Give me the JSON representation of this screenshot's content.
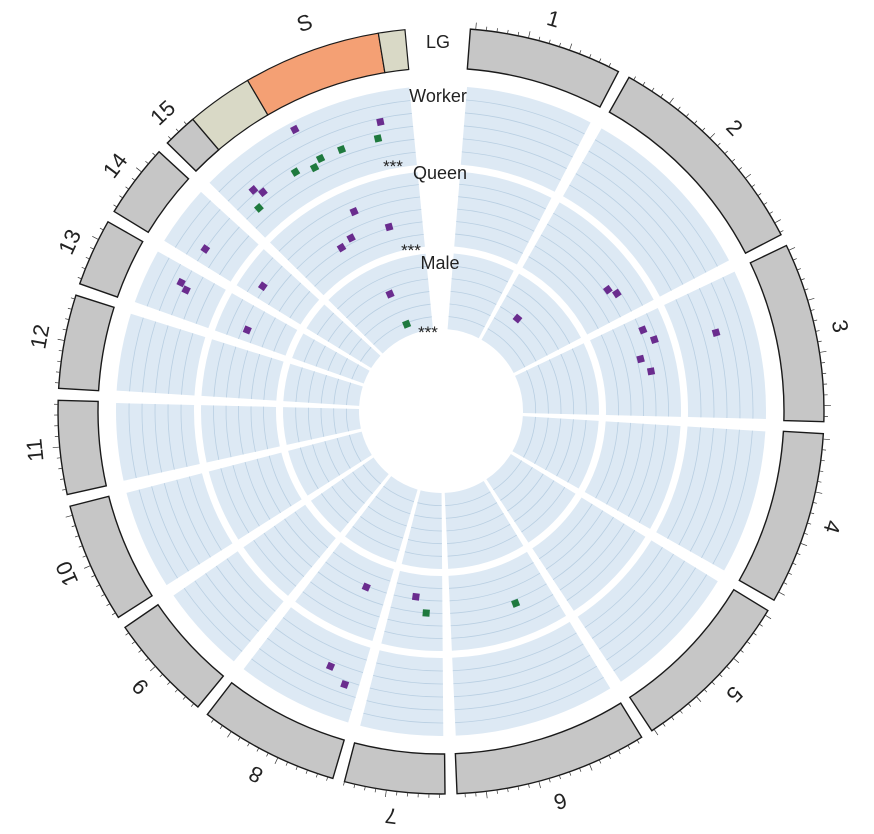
{
  "colors": {
    "chromosome_fill": "#c6c6c6",
    "chromosome_stroke": "#1a1a1a",
    "s_segment_main": "#f4a074",
    "s_segment_side": "#d9d9c6",
    "track_fill": "#dde9f4",
    "track_line": "#b9cfe2",
    "marker_purple": "#6a2c8e",
    "marker_green": "#1f7a3e"
  },
  "labels": {
    "lg": "LG",
    "s": "S",
    "worker": "Worker",
    "queen": "Queen",
    "male": "Male",
    "sig_worker": "***",
    "sig_queen": "***",
    "sig_male": "***"
  },
  "linkage_groups": [
    "1",
    "2",
    "3",
    "4",
    "5",
    "6",
    "7",
    "8",
    "9",
    "10",
    "11",
    "12",
    "13",
    "14",
    "15"
  ],
  "tracks": [
    "Worker",
    "Queen",
    "Male"
  ],
  "markers": [
    {
      "track": "Worker",
      "group": "S",
      "value": 0.9,
      "offset": 0.45,
      "color": "purple"
    },
    {
      "track": "Worker",
      "group": "S",
      "value": 0.55,
      "offset": 0.12,
      "color": "purple"
    },
    {
      "track": "Worker",
      "group": "S",
      "value": 0.45,
      "offset": 0.15,
      "color": "purple"
    },
    {
      "track": "Worker",
      "group": "S",
      "value": 0.62,
      "offset": 0.85,
      "color": "purple"
    },
    {
      "track": "Worker",
      "group": "S",
      "value": 0.42,
      "offset": 0.35,
      "color": "green"
    },
    {
      "track": "Worker",
      "group": "S",
      "value": 0.42,
      "offset": 0.5,
      "color": "green"
    },
    {
      "track": "Worker",
      "group": "S",
      "value": 0.42,
      "offset": 0.62,
      "color": "green"
    },
    {
      "track": "Worker",
      "group": "S",
      "value": 0.42,
      "offset": 0.82,
      "color": "green"
    },
    {
      "track": "Worker",
      "group": "S",
      "value": 0.33,
      "offset": 0.08,
      "color": "green"
    },
    {
      "track": "Worker",
      "group": "S",
      "value": 0.35,
      "offset": 0.45,
      "color": "green"
    },
    {
      "track": "Worker",
      "group": "14",
      "value": 0.5,
      "offset": 0.25,
      "color": "purple"
    },
    {
      "track": "Worker",
      "group": "13",
      "value": 0.55,
      "offset": 0.7,
      "color": "purple"
    },
    {
      "track": "Worker",
      "group": "13",
      "value": 0.45,
      "offset": 0.6,
      "color": "purple"
    },
    {
      "track": "Worker",
      "group": "3",
      "value": 0.5,
      "offset": 0.35,
      "color": "purple"
    },
    {
      "track": "Queen",
      "group": "S",
      "value": 0.7,
      "offset": 0.55,
      "color": "purple"
    },
    {
      "track": "Queen",
      "group": "S",
      "value": 0.4,
      "offset": 0.45,
      "color": "purple"
    },
    {
      "track": "Queen",
      "group": "S",
      "value": 0.35,
      "offset": 0.35,
      "color": "purple"
    },
    {
      "track": "Queen",
      "group": "S",
      "value": 0.35,
      "offset": 0.75,
      "color": "purple"
    },
    {
      "track": "Queen",
      "group": "14",
      "value": 0.7,
      "offset": 0.3,
      "color": "purple"
    },
    {
      "track": "Queen",
      "group": "13",
      "value": 0.6,
      "offset": 0.3,
      "color": "purple"
    },
    {
      "track": "Queen",
      "group": "2",
      "value": 0.62,
      "offset": 0.82,
      "color": "purple"
    },
    {
      "track": "Queen",
      "group": "2",
      "value": 0.55,
      "offset": 0.75,
      "color": "purple"
    },
    {
      "track": "Queen",
      "group": "3",
      "value": 0.7,
      "offset": 0.12,
      "color": "purple"
    },
    {
      "track": "Queen",
      "group": "3",
      "value": 0.8,
      "offset": 0.25,
      "color": "purple"
    },
    {
      "track": "Queen",
      "group": "3",
      "value": 0.55,
      "offset": 0.4,
      "color": "purple"
    },
    {
      "track": "Queen",
      "group": "3",
      "value": 0.65,
      "offset": 0.55,
      "color": "purple"
    },
    {
      "track": "Queen",
      "group": "6",
      "value": 0.55,
      "offset": 0.35,
      "color": "green"
    },
    {
      "track": "Queen",
      "group": "7",
      "value": 0.5,
      "offset": 0.3,
      "color": "green"
    },
    {
      "track": "Queen",
      "group": "7",
      "value": 0.3,
      "offset": 0.55,
      "color": "purple"
    },
    {
      "track": "Queen",
      "group": "8",
      "value": 0.35,
      "offset": 0.3,
      "color": "purple"
    },
    {
      "track": "Worker",
      "group": "8",
      "value": 0.55,
      "offset": 0.12,
      "color": "purple"
    },
    {
      "track": "Worker",
      "group": "8",
      "value": 0.4,
      "offset": 0.32,
      "color": "purple"
    },
    {
      "track": "Male",
      "group": "S",
      "value": 0.6,
      "offset": 0.55,
      "color": "purple"
    },
    {
      "track": "Male",
      "group": "S",
      "value": 0.15,
      "offset": 0.6,
      "color": "green"
    },
    {
      "track": "Male",
      "group": "2",
      "value": 0.5,
      "offset": 0.3,
      "color": "purple"
    }
  ]
}
